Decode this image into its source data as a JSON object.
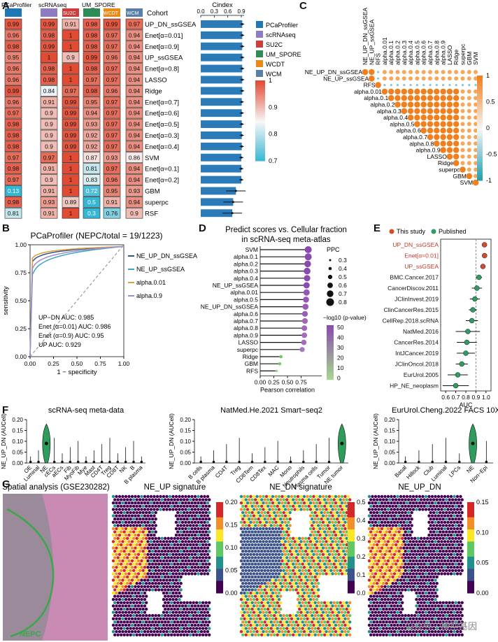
{
  "panel_labels": [
    "A",
    "B",
    "C",
    "D",
    "E",
    "F",
    "G"
  ],
  "panelA": {
    "col_headers_top": [
      "PCaProfiler",
      "scRNAseq",
      "UM_SPORE"
    ],
    "col_headers_mid": [
      "SU2C",
      "WCDT",
      "WCM"
    ],
    "cohort_label": "Cohort",
    "cindex_title": "Cindex",
    "cindex_ticks": [
      "0.0",
      "0.3",
      "0.6",
      "0.9"
    ],
    "cohort_colors": [
      "#1f77b4",
      "#8e7cc3",
      "#cc3d3d",
      "#2e8b57",
      "#e88a1a",
      "#5a7fa6"
    ],
    "legend": [
      "PCaProfiler",
      "scRNAseq",
      "SU2C",
      "UM_SPORE",
      "WCDT",
      "WCM"
    ],
    "colorbar_ticks": [
      "1",
      "0.9",
      "0.8",
      "0.7"
    ],
    "methods": [
      "UP_DN_ssGSEA",
      "Enet[α=0.01]",
      "Enet[α=0.9]",
      "UP_ssGSEA",
      "Enet[α=0.8]",
      "LASSO",
      "Ridge",
      "Enet[α=0.7]",
      "Enet[α=0.6]",
      "Enet[α=0.5]",
      "Enet[α=0.3]",
      "Enet[α=0.4]",
      "SVM",
      "Enet[α=0.1]",
      "Enet[α=0.2]",
      "GBM",
      "superpc",
      "RSF"
    ],
    "values": [
      [
        "0.99",
        "0.99",
        "0.91",
        "0.98",
        "0.99",
        "0.97"
      ],
      [
        "0.96",
        "0.98",
        "1",
        "0.98",
        "0.97",
        "0.94"
      ],
      [
        "0.98",
        "0.99",
        "1",
        "0.98",
        "0.97",
        "0.94"
      ],
      [
        "0.95",
        "1",
        "0.9",
        "0.99",
        "0.96",
        "0.94"
      ],
      [
        "0.96",
        "0.98",
        "1",
        "0.98",
        "0.97",
        "0.94"
      ],
      [
        "0.96",
        "0.98",
        "1",
        "0.97",
        "0.97",
        "0.94"
      ],
      [
        "0.99",
        "0.84",
        "0.97",
        "0.98",
        "0.96",
        "0.94"
      ],
      [
        "0.96",
        "0.91",
        "0.99",
        "0.95",
        "0.97",
        "0.94"
      ],
      [
        "0.97",
        "0.9",
        "0.99",
        "0.94",
        "0.97",
        "0.94"
      ],
      [
        "0.98",
        "0.9",
        "0.99",
        "0.93",
        "0.97",
        "0.94"
      ],
      [
        "0.98",
        "0.9",
        "0.99",
        "0.92",
        "0.97",
        "0.94"
      ],
      [
        "0.98",
        "0.9",
        "0.99",
        "0.92",
        "0.97",
        "0.94"
      ],
      [
        "0.97",
        "0.97",
        "1",
        "0.87",
        "0.93",
        "0.86"
      ],
      [
        "0.98",
        "0.91",
        "1",
        "0.81",
        "0.97",
        "0.94"
      ],
      [
        "0.97",
        "0.9",
        "1",
        "0.83",
        "0.96",
        "0.94"
      ],
      [
        "0.13",
        "0.91",
        "1",
        "0.72",
        "0.95",
        "0.93"
      ],
      [
        "0.98",
        "0.93",
        "0.89",
        "0.5",
        "0.91",
        "0.94"
      ],
      [
        "0.81",
        "0.91",
        "1",
        "0.3",
        "0.76",
        "0.9"
      ]
    ],
    "cindex": [
      0.92,
      0.92,
      0.92,
      0.92,
      0.92,
      0.92,
      0.92,
      0.91,
      0.91,
      0.91,
      0.91,
      0.91,
      0.9,
      0.9,
      0.9,
      0.78,
      0.72,
      0.7
    ]
  },
  "panelB": {
    "title": "PCaProfiler (NEPC/total = 19/1223)",
    "xlabel": "1 − specificity",
    "ylabel": "sensitivity",
    "ticks": [
      "0.00",
      "0.25",
      "0.50",
      "0.75",
      "1.00"
    ],
    "legend": [
      "NE_UP_DN_ssGSEA",
      "NE_UP_ssGSEA",
      "alpha.0.01",
      "alpha.0.9"
    ],
    "colors": [
      "#2b5b84",
      "#3aa7c9",
      "#e69b3a",
      "#a08cd1"
    ],
    "auc_lines": [
      "UP−DN AUC:  0.985",
      "Enet (α=0.01) AUC:  0.986",
      "Enet (α=0.9) AUC:  0.95",
      "UP AUC:  0.929"
    ]
  },
  "panelC": {
    "labels": [
      "NE_UP_DN_ssGSEA",
      "NE_UP_ssGSEA",
      "RFS",
      "alpha.0.01",
      "alpha.0.1",
      "alpha.0.2",
      "alpha.0.3",
      "alpha.0.4",
      "alpha.0.5",
      "alpha.0.6",
      "alpha.0.7",
      "alpha.0.8",
      "alpha.0.9",
      "LASSO",
      "Ridge",
      "superpc",
      "GBM",
      "SVM"
    ],
    "colorbar_ticks": [
      "1",
      "0.5",
      "0",
      "-0.5",
      "-1"
    ]
  },
  "panelD": {
    "title_line1": "Predict scores vs. Cellular fraction",
    "title_line2": "in scRNA-seq meta-atlas",
    "xlabel": "Pearson correlation",
    "ticks": [
      "0.00",
      "0.25",
      "0.50",
      "0.75"
    ],
    "labels": [
      "SVM",
      "alpha.0.1",
      "alpha.0.2",
      "alpha.0.3",
      "alpha.0.4",
      "NE_UP_ssGSEA",
      "alpha.0.01",
      "alpha.0.5",
      "NE_UP_DN_ssGSEA",
      "alpha.0.6",
      "alpha.0.7",
      "alpha.0.8",
      "alpha.0.9",
      "LASSO",
      "superpc",
      "Ridge",
      "GBM",
      "RFS"
    ],
    "ppc_title": "PPC",
    "ppc_values": [
      "0.3",
      "0.4",
      "0.5",
      "0.6",
      "0.7",
      "0.8"
    ],
    "pval_title": "−log10 (p-value)",
    "pval_ticks": [
      "50",
      "40",
      "30",
      "20",
      "10",
      "0"
    ]
  },
  "panelE": {
    "legend": [
      "This study",
      "Published"
    ],
    "xlabel": "AUC",
    "ticks": [
      "0.6",
      "0.7",
      "0.8",
      "0.9",
      "1.0"
    ],
    "labels": [
      "UP_DN_ssGSEA",
      "Enet[α=0.01]",
      "UP_ssGSEA",
      "BMC.Cancer.2017",
      "CancerDiscov.2011",
      "JClinInvest.2019",
      "ClinCancerRes.2015",
      "CellRep.2018.scRNA",
      "NatMed.2016",
      "CancerRes.2014",
      "IntJCancer.2019",
      "JClinOncol.2018",
      "EurUrol.2005",
      "HP_NE_neoplasm"
    ]
  },
  "panelF": {
    "ylabel": "NE_UP_DN (AUCell)",
    "yticks": [
      "0.00",
      "0.05",
      "0.10",
      "0.15",
      "0.20"
    ],
    "plots": [
      {
        "title": "scRNA-seq meta-data",
        "cats": [
          "OE",
          "Luminal",
          "NE",
          "cECs",
          "aECs",
          "Fib",
          "MyoFib",
          "Mye",
          "Mast",
          "CD4T",
          "Treg",
          "CD8T",
          "NK",
          "B",
          "B plasma"
        ]
      },
      {
        "title": "NatMed.He.2021 Smart−seq2",
        "cats": [
          "B cells",
          "B plasma",
          "CD4T",
          "Treg",
          "CD8Tem",
          "CD8Tex",
          "MAC",
          "Mono",
          "Neutrophils",
          "Plasma cells",
          "Tumor",
          "NE tumor"
        ]
      },
      {
        "title": "EurUrol.Cheng.2022 FACS 10X",
        "cats": [
          "Basal",
          "Hillock",
          "Club",
          "Luminal",
          "LPCs",
          "NE",
          "Non−Epi"
        ]
      }
    ]
  },
  "panelG": {
    "titles": [
      "Spatial analysis (GSE230282)",
      "NE_UP signature",
      "NE_DN signature",
      "NE_UP_DN"
    ],
    "nepc_label": "NEPC",
    "cbar1": [
      "0.20",
      "0.15",
      "0.10",
      "0.05",
      "0.00"
    ],
    "cbar2": [
      "0.5",
      "0.4",
      "0.3",
      "0.2",
      "0.1",
      "0.0"
    ],
    "cbar3": [
      "0.15",
      "0.10",
      "0.05",
      "0.00"
    ]
  },
  "watermark": "公众号 · 模型基因"
}
